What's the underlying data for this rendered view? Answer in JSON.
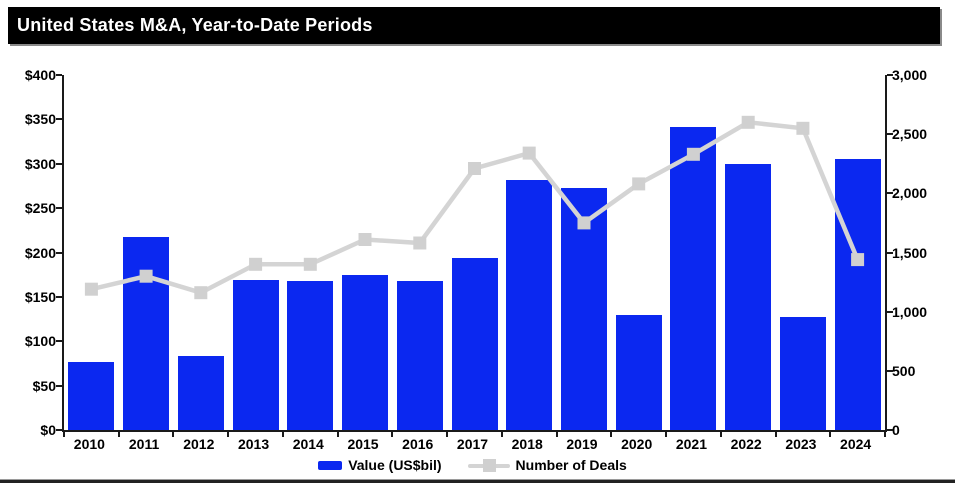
{
  "title": "United States M&A, Year-to-Date Periods",
  "colors": {
    "bar": "#0b28f0",
    "line": "#d4d4d4",
    "marker": "#d0d0d0",
    "header_bg": "#000000",
    "header_text": "#ffffff",
    "axis": "#1a1a1a"
  },
  "legend": {
    "value_label": "Value (US$bil)",
    "deals_label": "Number of Deals"
  },
  "chart_data": {
    "type": "bar",
    "title": "United States M&A, Year-to-Date Periods",
    "categories": [
      "2010",
      "2011",
      "2012",
      "2013",
      "2014",
      "2015",
      "2016",
      "2017",
      "2018",
      "2019",
      "2020",
      "2021",
      "2022",
      "2023",
      "2024"
    ],
    "series": [
      {
        "name": "Value (US$bil)",
        "type": "bar",
        "axis": "left",
        "values": [
          77,
          217,
          83,
          169,
          168,
          175,
          168,
          194,
          282,
          273,
          130,
          341,
          300,
          127,
          305
        ]
      },
      {
        "name": "Number of Deals",
        "type": "line",
        "axis": "right",
        "values": [
          1190,
          1300,
          1160,
          1400,
          1400,
          1610,
          1580,
          2210,
          2340,
          1750,
          2080,
          2330,
          2600,
          2550,
          1440
        ]
      }
    ],
    "left_axis": {
      "label": "",
      "min": 0,
      "max": 400,
      "ticks": [
        "$0",
        "$50",
        "$100",
        "$150",
        "$200",
        "$250",
        "$300",
        "$350",
        "$400"
      ]
    },
    "right_axis": {
      "label": "",
      "min": 0,
      "max": 3000,
      "ticks": [
        "0",
        "500",
        "1,000",
        "1,500",
        "2,000",
        "2,500",
        "3,000"
      ]
    },
    "grid": false,
    "legend_position": "bottom"
  }
}
